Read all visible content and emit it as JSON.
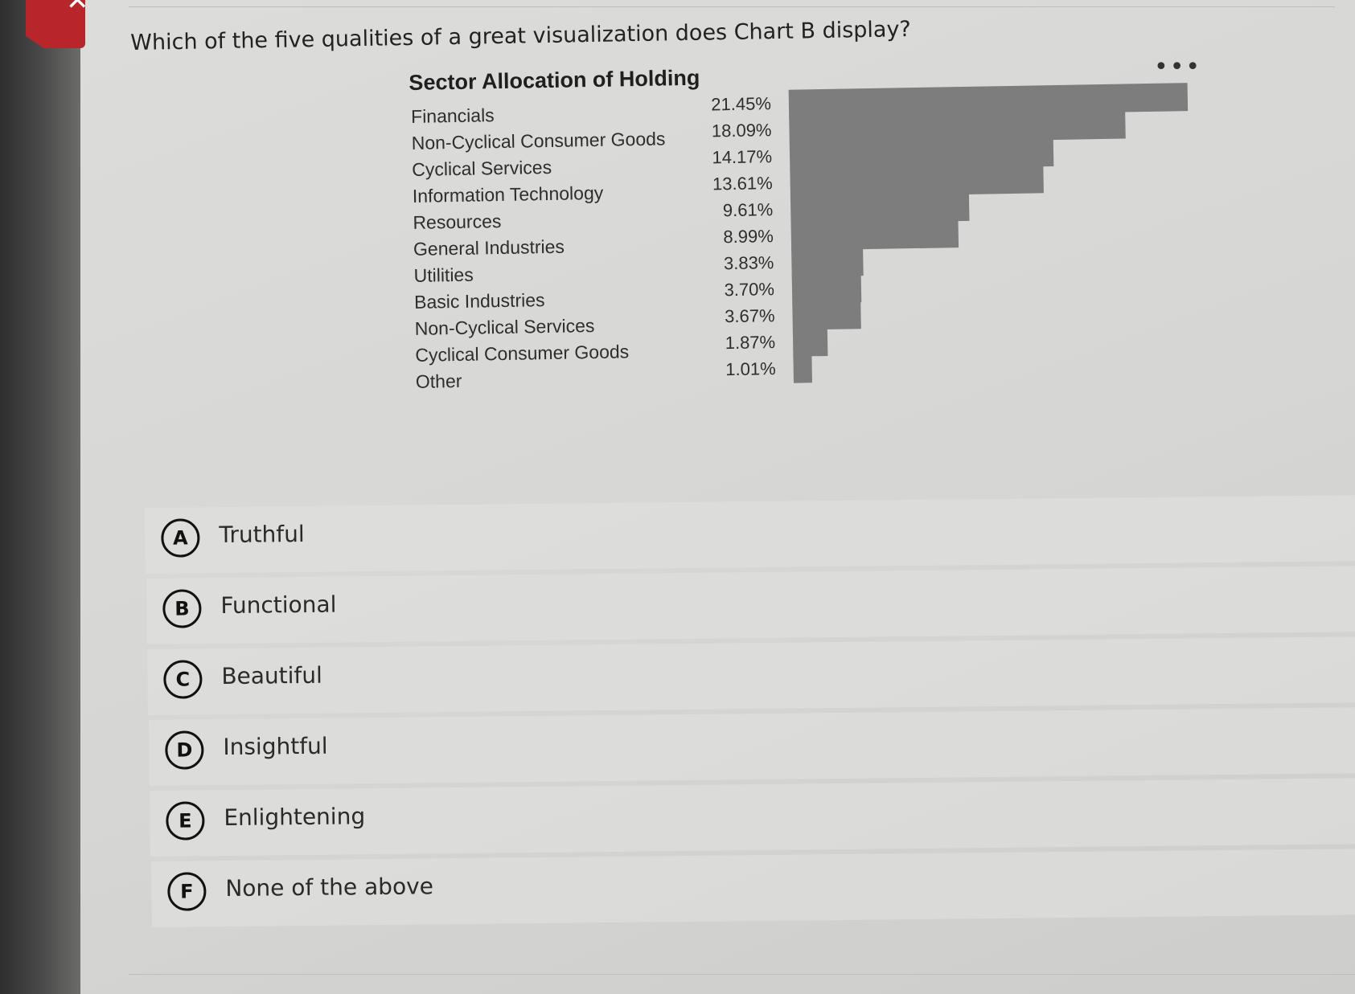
{
  "question": "Which of the five qualities of a great visualization does Chart B display?",
  "icons": {
    "close": "close-icon",
    "more": "more-horizontal-icon"
  },
  "colors": {
    "close_tab": "#b8262c",
    "bar": "#7d7d7d"
  },
  "chart_data": {
    "type": "bar",
    "orientation": "horizontal",
    "title": "Sector Allocation of Holding",
    "categories": [
      "Financials",
      "Non-Cyclical Consumer Goods",
      "Cyclical Services",
      "Information Technology",
      "Resources",
      "General Industries",
      "Utilities",
      "Basic Industries",
      "Non-Cyclical Services",
      "Cyclical Consumer Goods",
      "Other"
    ],
    "values": [
      21.45,
      18.09,
      14.17,
      13.61,
      9.61,
      8.99,
      3.83,
      3.7,
      3.67,
      1.87,
      1.01
    ],
    "value_labels": [
      "21.45%",
      "18.09%",
      "14.17%",
      "13.61%",
      "9.61%",
      "8.99%",
      "3.83%",
      "3.70%",
      "3.67%",
      "1.87%",
      "1.01%"
    ],
    "xlabel": "",
    "ylabel": "",
    "xlim": [
      0,
      21.45
    ],
    "grid": false,
    "legend": "none"
  },
  "options": [
    {
      "letter": "A",
      "text": "Truthful"
    },
    {
      "letter": "B",
      "text": "Functional"
    },
    {
      "letter": "C",
      "text": "Beautiful"
    },
    {
      "letter": "D",
      "text": "Insightful"
    },
    {
      "letter": "E",
      "text": "Enlightening"
    },
    {
      "letter": "F",
      "text": "None of the above"
    }
  ]
}
